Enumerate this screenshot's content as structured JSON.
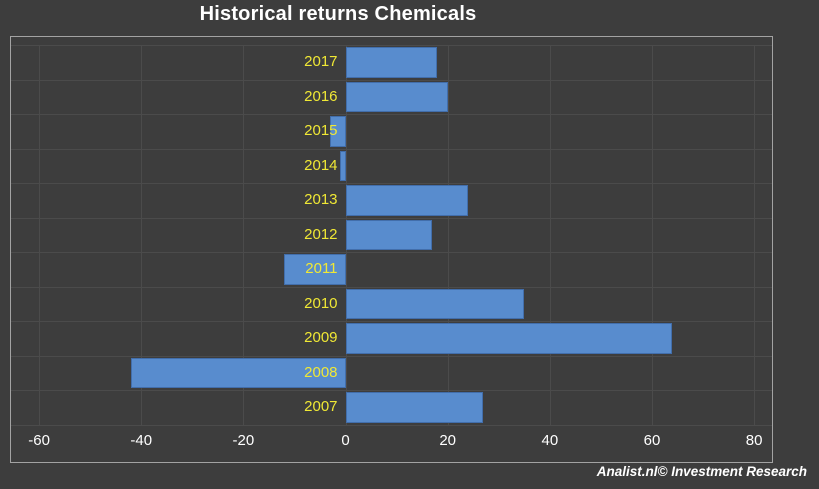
{
  "title": "Historical returns Chemicals",
  "footer": "Analist.nl© Investment Research",
  "chart_data": {
    "type": "bar",
    "orientation": "horizontal",
    "title": "Historical returns Chemicals",
    "categories": [
      "2017",
      "2016",
      "2015",
      "2014",
      "2013",
      "2012",
      "2011",
      "2010",
      "2009",
      "2008",
      "2007"
    ],
    "values": [
      18,
      20,
      -3,
      -1,
      24,
      17,
      -12,
      35,
      64,
      -42,
      27
    ],
    "xlabel": "",
    "ylabel": "",
    "xlim": [
      -65.5,
      83.5
    ],
    "xticks": [
      -60,
      -40,
      -20,
      0,
      20,
      40,
      60,
      80
    ],
    "grid": true,
    "legend": false,
    "category_label_position": "left-of-zero-axis",
    "colors": {
      "background": "#3d3d3d",
      "bar": "#588cce",
      "category_label": "#f0e835",
      "tick_label": "#ffffff",
      "gridline": "#4b4b4b",
      "plot_border": "#a3a3a3",
      "title": "#ffffff",
      "footer": "#ffffff"
    }
  }
}
